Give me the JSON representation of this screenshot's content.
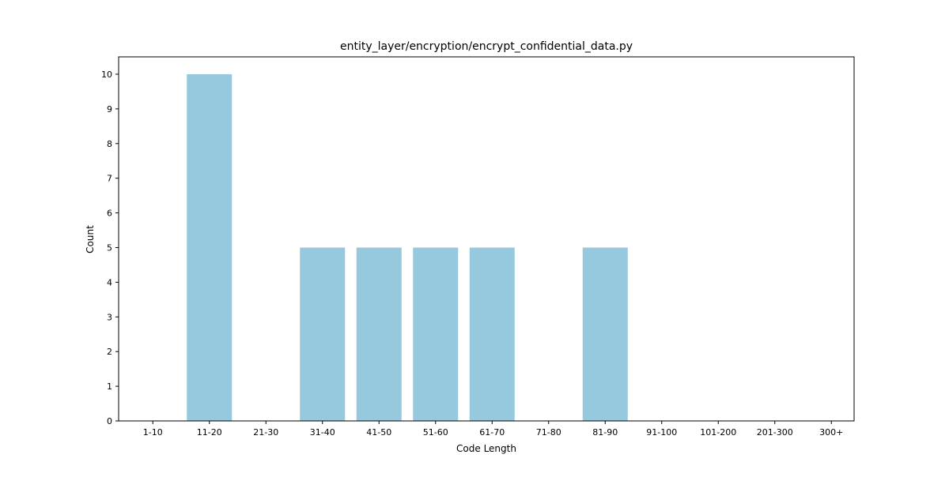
{
  "chart_data": {
    "type": "bar",
    "title": "entity_layer/encryption/encrypt_confidential_data.py",
    "xlabel": "Code Length",
    "ylabel": "Count",
    "categories": [
      "1-10",
      "11-20",
      "21-30",
      "31-40",
      "41-50",
      "51-60",
      "61-70",
      "71-80",
      "81-90",
      "91-100",
      "101-200",
      "201-300",
      "300+"
    ],
    "values": [
      0,
      10,
      0,
      5,
      5,
      5,
      5,
      0,
      5,
      0,
      0,
      0,
      0
    ],
    "ylim": [
      0,
      10.5
    ],
    "yticks": [
      0,
      1,
      2,
      3,
      4,
      5,
      6,
      7,
      8,
      9,
      10
    ],
    "bar_color": "#96c9dd",
    "grid": false,
    "legend": "none"
  }
}
